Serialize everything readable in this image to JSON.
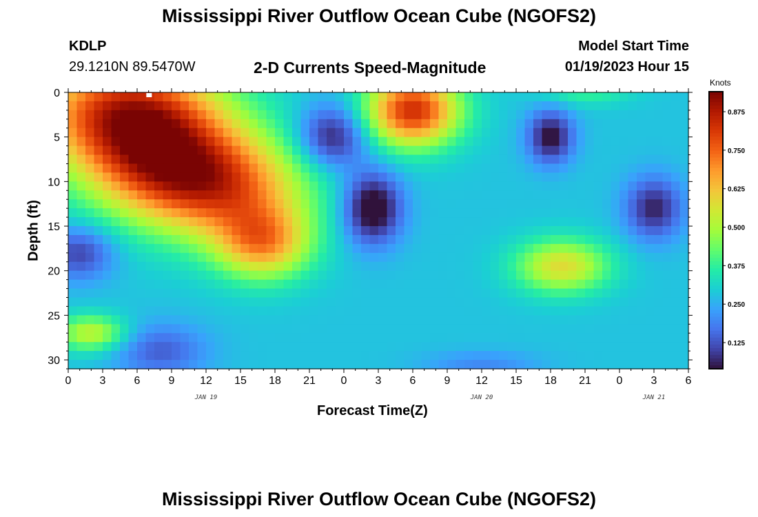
{
  "header": {
    "title": "Mississippi River Outflow Ocean Cube (NGOFS2)",
    "station": "KDLP",
    "coords": "29.1210N  89.5470W",
    "subtitle": "2-D Currents Speed-Magnitude",
    "model_start_label": "Model Start Time",
    "model_start_value": "01/19/2023 Hour 15"
  },
  "footer": {
    "title": "Mississippi River Outflow Ocean Cube (NGOFS2)"
  },
  "chart_data": {
    "type": "heatmap",
    "title": "2-D Currents Speed-Magnitude",
    "xlabel": "Forecast Time(Z)",
    "ylabel": "Depth (ft)",
    "x_tick_labels": [
      "0",
      "3",
      "6",
      "9",
      "12",
      "15",
      "18",
      "21",
      "0",
      "3",
      "6",
      "9",
      "12",
      "15",
      "18",
      "21",
      "0",
      "3",
      "6"
    ],
    "date_labels": [
      {
        "text": "JAN 19",
        "forecast_hour": 12
      },
      {
        "text": "JAN 20",
        "forecast_hour": 36
      },
      {
        "text": "JAN 21",
        "forecast_hour": 51
      }
    ],
    "xlim_forecast_hours": [
      0,
      54
    ],
    "y_tick_labels": [
      "0",
      "5",
      "10",
      "15",
      "20",
      "25",
      "30"
    ],
    "ylim_ft": [
      0,
      31
    ],
    "y_inverted": true,
    "colorbar": {
      "label": "Knots",
      "min": 0.04,
      "max": 0.94,
      "ticks": [
        "0.875",
        "0.750",
        "0.625",
        "0.500",
        "0.375",
        "0.250",
        "0.125"
      ],
      "tick_values": [
        0.875,
        0.75,
        0.625,
        0.5,
        0.375,
        0.25,
        0.125
      ],
      "colormap": [
        "#30123b",
        "#4145ab",
        "#4675ed",
        "#39a2fc",
        "#1bcfd4",
        "#24eca6",
        "#61fc6c",
        "#a4fc3b",
        "#d1e834",
        "#f3c63a",
        "#fe9b2d",
        "#f36315",
        "#d93806",
        "#b11901",
        "#7a0403"
      ]
    },
    "features": [
      {
        "t": 5,
        "d": 2,
        "w": 8,
        "h": 6,
        "v": 0.52
      },
      {
        "t": 8,
        "d": 8,
        "w": 7,
        "h": 6,
        "v": 0.42
      },
      {
        "t": 14,
        "d": 11,
        "w": 7,
        "h": 6,
        "v": 0.38
      },
      {
        "t": 17,
        "d": 17,
        "w": 4,
        "h": 4,
        "v": 0.35
      },
      {
        "t": 1,
        "d": 18,
        "w": 3,
        "h": 3,
        "v": -0.18
      },
      {
        "t": 2,
        "d": 27,
        "w": 3,
        "h": 2,
        "v": 0.25
      },
      {
        "t": 8,
        "d": 29,
        "w": 4,
        "h": 3,
        "v": -0.14
      },
      {
        "t": 23,
        "d": 5,
        "w": 3,
        "h": 3.5,
        "v": -0.24
      },
      {
        "t": 26.5,
        "d": 13,
        "w": 2.5,
        "h": 4,
        "v": -0.3
      },
      {
        "t": 30,
        "d": 2,
        "w": 4,
        "h": 4,
        "v": 0.55
      },
      {
        "t": 42,
        "d": 5,
        "w": 2,
        "h": 3,
        "v": -0.25
      },
      {
        "t": 51,
        "d": 13,
        "w": 2.5,
        "h": 3.5,
        "v": -0.22
      },
      {
        "t": 43,
        "d": 19.5,
        "w": 4,
        "h": 3,
        "v": 0.3
      },
      {
        "t": 45,
        "d": 0,
        "w": 4,
        "h": 1.5,
        "v": 0.1
      },
      {
        "t": 36,
        "d": 30.5,
        "w": 5,
        "h": 1.5,
        "v": -0.08
      }
    ],
    "base_value": 0.28
  }
}
